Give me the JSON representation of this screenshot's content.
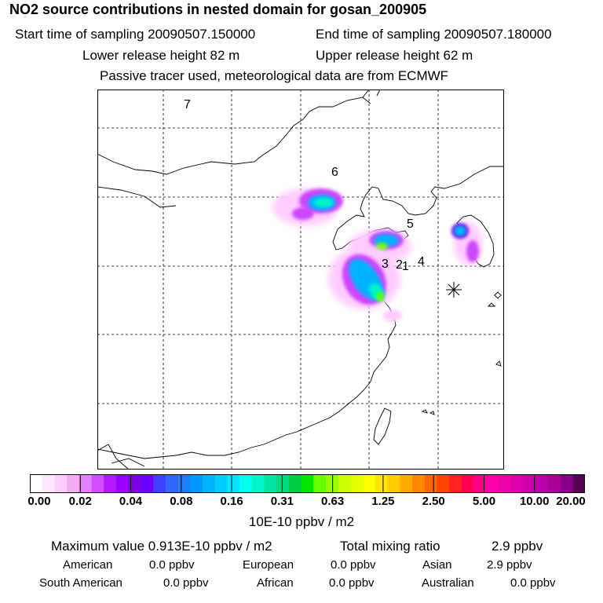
{
  "header": {
    "title": "NO2 source contributions in nested domain for gosan_200905",
    "start_sampling": "Start time of sampling 20090507.150000",
    "end_sampling": "End time of sampling 20090507.180000",
    "lower_release": "Lower release height   82 m",
    "upper_release": "Upper release height   62 m",
    "tracer_info": "Passive tracer used, meteorological data are from ECMWF"
  },
  "map": {
    "region_labels": [
      "7",
      "6",
      "5",
      "3",
      "2",
      "1",
      "4"
    ],
    "receptor_marker": "star-marker"
  },
  "colorbar": {
    "ticks": [
      "0.00",
      "0.02",
      "0.04",
      "0.08",
      "0.16",
      "0.31",
      "0.63",
      "1.25",
      "2.50",
      "5.00",
      "10.00",
      "20.00"
    ],
    "colors": [
      "#ffffff",
      "#ffe6ff",
      "#ffccff",
      "#f5aaf5",
      "#e680ff",
      "#d24dff",
      "#b31aff",
      "#9900ff",
      "#8000e6",
      "#6a00ff",
      "#4040ff",
      "#3366ff",
      "#1a80ff",
      "#0099ff",
      "#00b3ff",
      "#00ccff",
      "#00e6ff",
      "#00ffee",
      "#00f5c8",
      "#00e6a0",
      "#00d980",
      "#00cc44",
      "#00e600",
      "#66ff00",
      "#99ff00",
      "#ccff00",
      "#e6ff00",
      "#ffff00",
      "#ffe600",
      "#ffcc00",
      "#ffaa00",
      "#ff8800",
      "#ff6600",
      "#ff4400",
      "#ff2222",
      "#ff0055",
      "#ff0088",
      "#ff00aa",
      "#ee00aa",
      "#dd00aa",
      "#cc00aa",
      "#bb00aa",
      "#aa0099",
      "#880088",
      "#550055"
    ],
    "units": "10E-10 ppbv / m2"
  },
  "summary": {
    "max_value": "Maximum value  0.913E-10 ppbv / m2",
    "total_mixing_label": "Total mixing ratio",
    "total_mixing_value": "2.9 ppbv",
    "regions": [
      {
        "name": "American",
        "value": "0.0 ppbv"
      },
      {
        "name": "European",
        "value": "0.0 ppbv"
      },
      {
        "name": "Asian",
        "value": "2.9 ppbv"
      },
      {
        "name": "South American",
        "value": "0.0 ppbv"
      },
      {
        "name": "African",
        "value": "0.0 ppbv"
      },
      {
        "name": "Australian",
        "value": "0.0 ppbv"
      }
    ]
  }
}
